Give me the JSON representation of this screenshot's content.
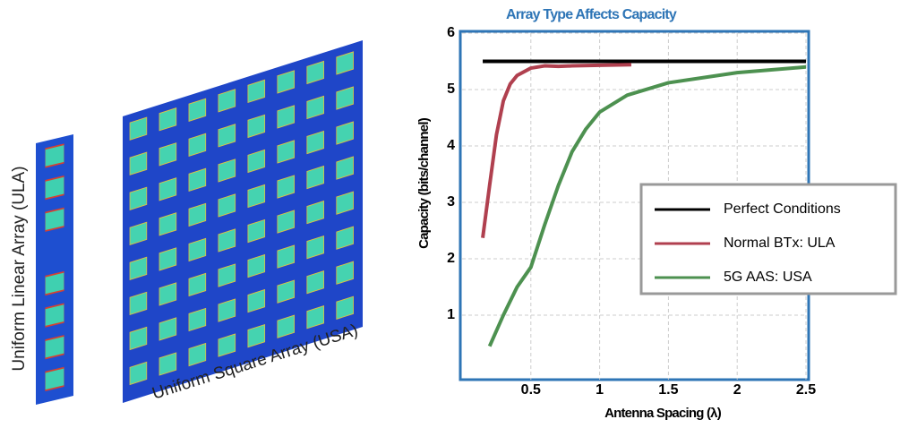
{
  "chart_data": {
    "type": "line",
    "title": "Array Type Affects Capacity",
    "x_label": "Antenna Spacing (λ)",
    "y_label": "Capacity (bits/channel)",
    "annotations": [
      "Uniform Linear Array (ULA)",
      "Uniform Square Array (USA)"
    ],
    "xlim": [
      0,
      2.5
    ],
    "ylim": [
      0,
      6
    ],
    "xticks": [
      0.5,
      1,
      1.5,
      2,
      2.5
    ],
    "yticks": [
      1,
      2,
      3,
      4,
      5,
      6
    ],
    "grid": true,
    "legend": "right",
    "series": [
      {
        "name": "Perfect Conditions",
        "color": "#000000",
        "x": [
          0.15,
          2.5
        ],
        "values": [
          5.5,
          5.5
        ]
      },
      {
        "name": "Normal BTx: ULA",
        "color": "#b0404f",
        "x": [
          0.15,
          0.2,
          0.25,
          0.3,
          0.35,
          0.4,
          0.5,
          0.6,
          0.7,
          0.8,
          1.0,
          1.23
        ],
        "values": [
          2.37,
          3.3,
          4.2,
          4.8,
          5.1,
          5.25,
          5.38,
          5.42,
          5.41,
          5.42,
          5.43,
          5.44
        ]
      },
      {
        "name": "5G AAS: USA",
        "color": "#4d9150",
        "x": [
          0.2,
          0.3,
          0.4,
          0.5,
          0.6,
          0.7,
          0.8,
          0.9,
          1.0,
          1.2,
          1.5,
          2.0,
          2.5
        ],
        "values": [
          0.45,
          1.0,
          1.5,
          1.85,
          2.6,
          3.3,
          3.9,
          4.3,
          4.6,
          4.9,
          5.12,
          5.3,
          5.4
        ]
      }
    ]
  }
}
